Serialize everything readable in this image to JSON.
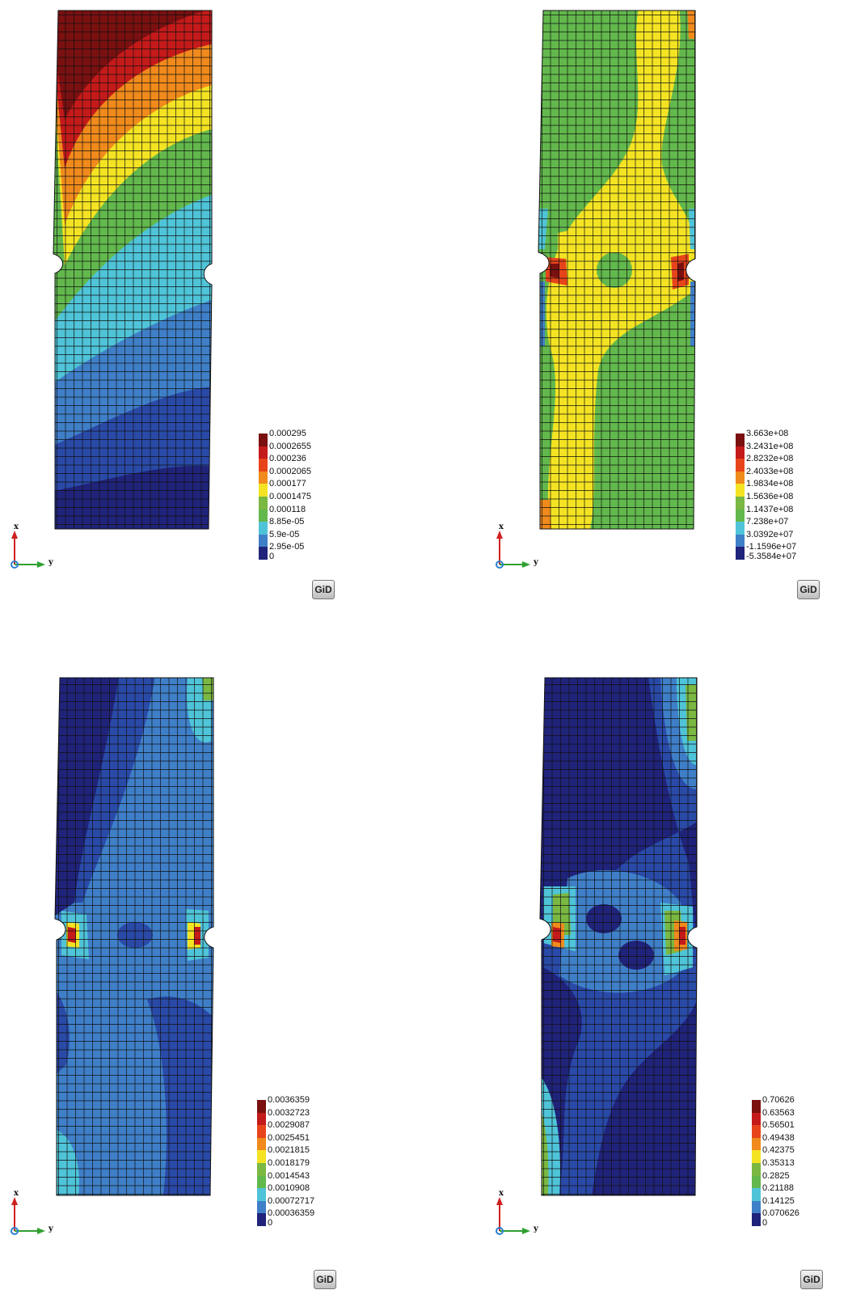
{
  "logo_text": "GiD",
  "axis_labels": {
    "x": "x",
    "y": "y"
  },
  "panels": [
    {
      "legend": [
        "0.000295",
        "0.0002655",
        "0.000236",
        "0.0002065",
        "0.000177",
        "0.0001475",
        "0.000118",
        "8.85e-05",
        "5.9e-05",
        "2.95e-05"
      ],
      "legend_zero": "0"
    },
    {
      "legend": [
        "3.663e+08",
        "3.2431e+08",
        "2.8232e+08",
        "2.4033e+08",
        "1.9834e+08",
        "1.5636e+08",
        "1.1437e+08",
        "7.238e+07",
        "3.0392e+07",
        "-1.1596e+07"
      ],
      "legend_zero": "-5.3584e+07"
    },
    {
      "legend": [
        "0.0036359",
        "0.0032723",
        "0.0029087",
        "0.0025451",
        "0.0021815",
        "0.0018179",
        "0.0014543",
        "0.0010908",
        "0.00072717",
        "0.00036359"
      ],
      "legend_zero": "0"
    },
    {
      "legend": [
        "0.70626",
        "0.63563",
        "0.56501",
        "0.49438",
        "0.42375",
        "0.35313",
        "0.2825",
        "0.21188",
        "0.14125",
        "0.070626"
      ],
      "legend_zero": "0"
    }
  ],
  "colormap": [
    "#7a1010",
    "#c41a1a",
    "#e8441b",
    "#f08a1c",
    "#f4e323",
    "#7ab842",
    "#62b84c",
    "#4fc4d8",
    "#3f7fc8",
    "#2a4aa8",
    "#20237a"
  ]
}
